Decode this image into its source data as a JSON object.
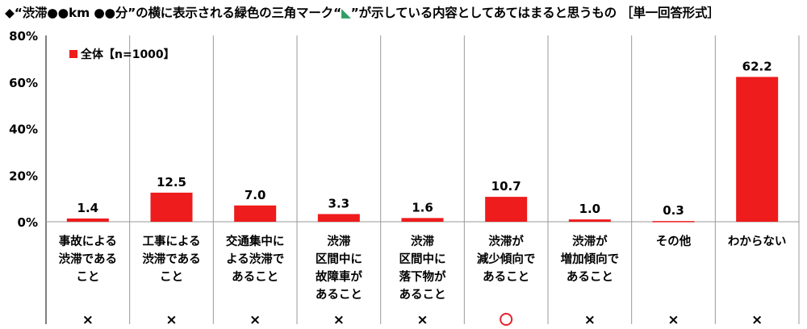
{
  "title": {
    "prefix": "◆“渋滞●●km ●●分”の横に表示される緑色の三角マーク“",
    "triangle": "◣",
    "suffix": "”が示している内容としてあてはまると思うもの ［単一回答形式］"
  },
  "colors": {
    "bar": "#ee1c1c",
    "grid": "#9a9a9a",
    "triangle": "#2e9e63",
    "circle": "#e8202a"
  },
  "chart_data": {
    "type": "bar",
    "title": "",
    "xlabel": "",
    "ylabel": "",
    "ylim": [
      0,
      80
    ],
    "yticks": [
      "0%",
      "20%",
      "40%",
      "60%",
      "80%"
    ],
    "ytick_values": [
      0,
      20,
      40,
      60,
      80
    ],
    "legend": "全体【n=1000】",
    "categories": [
      [
        "事故による",
        "渋滞である",
        "こと"
      ],
      [
        "工事による",
        "渋滞である",
        "こと"
      ],
      [
        "交通集中に",
        "よる渋滞で",
        "あること"
      ],
      [
        "渋滞",
        "区間中に",
        "故障車が",
        "あること"
      ],
      [
        "渋滞",
        "区間中に",
        "落下物が",
        "あること"
      ],
      [
        "渋滞が",
        "減少傾向で",
        "あること"
      ],
      [
        "渋滞が",
        "増加傾向で",
        "あること"
      ],
      [
        "その他"
      ],
      [
        "わからない"
      ]
    ],
    "series": [
      {
        "name": "全体【n=1000】",
        "values": [
          1.4,
          12.5,
          7.0,
          3.3,
          1.6,
          10.7,
          1.0,
          0.3,
          62.2
        ]
      }
    ],
    "value_labels": [
      "1.4",
      "12.5",
      "7.0",
      "3.3",
      "1.6",
      "10.7",
      "1.0",
      "0.3",
      "62.2"
    ],
    "marks": [
      "×",
      "×",
      "×",
      "×",
      "×",
      "○",
      "×",
      "×",
      "×"
    ]
  }
}
